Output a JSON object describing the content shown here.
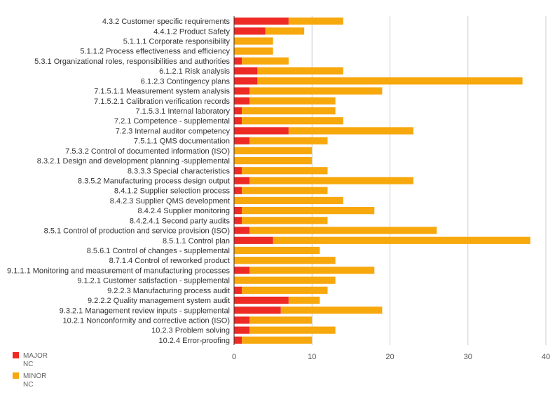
{
  "chart_data": {
    "type": "bar",
    "orientation": "horizontal",
    "stacked": true,
    "categories": [
      "4.3.2  Customer specific requirements",
      "4.4.1.2 Product Safety",
      "5.1.1.1  Corporate responsibility",
      "5.1.1.2   Process effectiveness and efficiency",
      "5.3.1 Organizational roles, responsibilities and authorities",
      "6.1.2.1  Risk analysis",
      "6.1.2.3 Contingency plans",
      "7.1.5.1.1 Measurement system analysis",
      "7.1.5.2.1 Calibration verification records",
      "7.1.5.3.1 Internal laboratory",
      "7.2.1 Competence - supplemental",
      "7.2.3 Internal auditor competency",
      "7.5.1.1 QMS documentation",
      "7.5.3.2 Control of documented information (ISO)",
      "8.3.2.1 Design and development planning -supplemental",
      "8.3.3.3 Special characteristics",
      "8.3.5.2 Manufacturing process design output",
      "8.4.1.2 Supplier selection process",
      "8.4.2.3 Supplier QMS development",
      "8.4.2.4 Supplier monitoring",
      "8.4.2.4.1 Second party audits",
      "8.5.1 Control of production and service provision (ISO)",
      "8.5.1.1 Control plan",
      "8.5.6.1 Control of changes - supplemental",
      "8.7.1.4 Control of reworked product",
      "9.1.1.1 Monitoring and measurement of manufacturing processes",
      "9.1.2.1 Customer satisfaction - supplemental",
      "9.2.2.3 Manufacturing process audit",
      "9.2.2.2 Quality management system audit",
      "9.3.2.1 Management review inputs - supplemental",
      "10.2.1 Nonconformity and corrective action (ISO)",
      "10.2.3 Problem solving",
      "10.2.4 Error-proofing"
    ],
    "series": [
      {
        "name": "MAJOR NC",
        "legend_lines": [
          "MAJOR",
          "NC"
        ],
        "color": "#ee2a24",
        "values": [
          7,
          4,
          0,
          0,
          1,
          3,
          3,
          2,
          2,
          1,
          1,
          7,
          2,
          0,
          0,
          1,
          2,
          1,
          0,
          1,
          1,
          2,
          5,
          0,
          0,
          2,
          0,
          1,
          7,
          6,
          2,
          2,
          1
        ]
      },
      {
        "name": "MINOR NC",
        "legend_lines": [
          "MINOR",
          "NC"
        ],
        "color": "#f7a80d",
        "values": [
          7,
          5,
          5,
          5,
          6,
          11,
          34,
          17,
          11,
          12,
          13,
          16,
          10,
          10,
          10,
          11,
          21,
          11,
          14,
          17,
          11,
          24,
          33,
          11,
          13,
          16,
          13,
          11,
          4,
          13,
          8,
          11,
          9
        ]
      }
    ],
    "xlim": [
      0,
      40
    ],
    "xticks": [
      "0",
      "10",
      "20",
      "30",
      "40"
    ],
    "grid": true,
    "legend_position": "bottom-left",
    "title": "",
    "xlabel": "",
    "ylabel": ""
  }
}
